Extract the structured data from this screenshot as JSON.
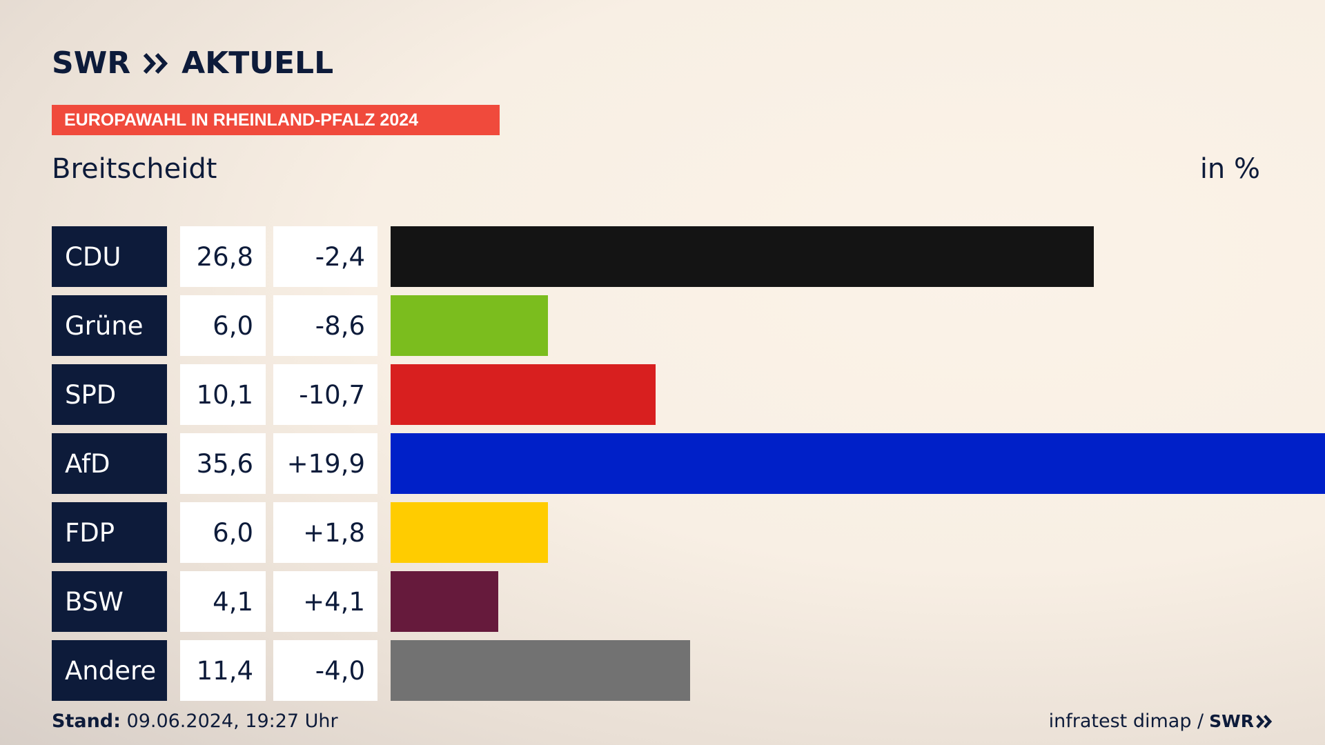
{
  "header": {
    "logo_left": "SWR",
    "logo_right": "AKTUELL",
    "badge": "EUROPAWAHL IN RHEINLAND-PFALZ 2024",
    "location": "Breitscheidt",
    "unit": "in %"
  },
  "footer": {
    "stand_label": "Stand:",
    "stand_value": "09.06.2024, 19:27 Uhr",
    "source": "infratest dimap /",
    "source_logo": "SWR"
  },
  "chart_data": {
    "type": "bar",
    "orientation": "horizontal",
    "categories": [
      "CDU",
      "Grüne",
      "SPD",
      "AfD",
      "FDP",
      "BSW",
      "Andere"
    ],
    "values": [
      26.8,
      6.0,
      10.1,
      35.6,
      6.0,
      4.1,
      11.4
    ],
    "value_labels": [
      "26,8",
      "6,0",
      "10,1",
      "35,6",
      "6,0",
      "4,1",
      "11,4"
    ],
    "diff_labels": [
      "-2,4",
      "-8,6",
      "-10,7",
      "+19,9",
      "+1,8",
      "+4,1",
      "-4,0"
    ],
    "colors": [
      "#141414",
      "#7bbd1e",
      "#d81f1f",
      "#0020c8",
      "#ffcc00",
      "#661a3c",
      "#727272"
    ],
    "xlim": [
      0,
      35.6
    ],
    "grid": false,
    "legend": "none"
  },
  "colors": {
    "navy": "#0d1b3a",
    "badge": "#f04a3c"
  }
}
